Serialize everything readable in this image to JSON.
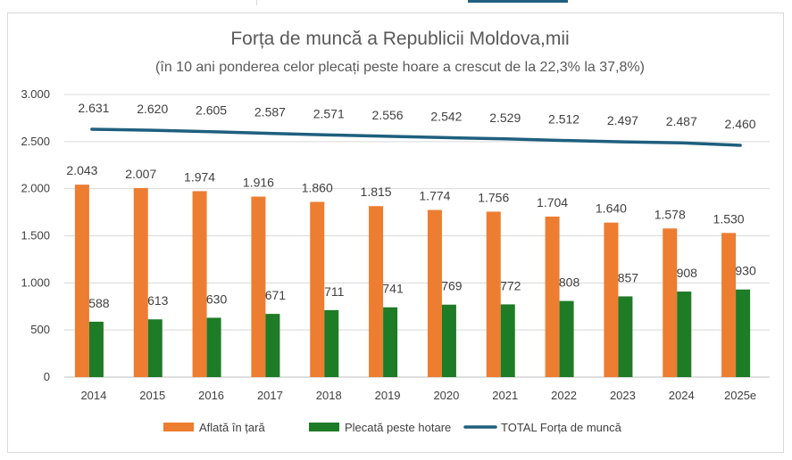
{
  "chart_data": {
    "type": "bar",
    "title": "Forța de muncă a Republicii Moldova,mii",
    "subtitle": "(în 10 ani ponderea celor plecați peste hoare a crescut de la 22,3% la 37,8%)",
    "categories": [
      "2014",
      "2015",
      "2016",
      "2017",
      "2018",
      "2019",
      "2020",
      "2021",
      "2022",
      "2023",
      "2024",
      "2025e"
    ],
    "ylim": [
      0,
      3000
    ],
    "yticks": [
      0,
      500,
      1000,
      1500,
      2000,
      2500,
      3000
    ],
    "ytick_labels": [
      "0",
      "500",
      "1.000",
      "1.500",
      "2.000",
      "2.500",
      "3.000"
    ],
    "grid": true,
    "legend_position": "bottom",
    "series": [
      {
        "name": "Aflată în țară",
        "kind": "bar",
        "color": "#ed7d31",
        "values": [
          2043,
          2007,
          1974,
          1916,
          1860,
          1815,
          1774,
          1756,
          1704,
          1640,
          1578,
          1530
        ],
        "labels": [
          "2.043",
          "2.007",
          "1.974",
          "1.916",
          "1.860",
          "1.815",
          "1.774",
          "1.756",
          "1.704",
          "1.640",
          "1.578",
          "1.530"
        ]
      },
      {
        "name": "Plecată peste hotare",
        "kind": "bar",
        "color": "#1e7b26",
        "values": [
          588,
          613,
          630,
          671,
          711,
          741,
          769,
          772,
          808,
          857,
          908,
          930
        ],
        "labels": [
          "588",
          "613",
          "630",
          "671",
          "711",
          "741",
          "769",
          "772",
          "808",
          "857",
          "908",
          "930"
        ]
      },
      {
        "name": "TOTAL Forța de muncă",
        "kind": "line",
        "color": "#1e5f7e",
        "values": [
          2631,
          2620,
          2605,
          2587,
          2571,
          2556,
          2542,
          2529,
          2512,
          2497,
          2487,
          2460
        ],
        "labels": [
          "2.631",
          "2.620",
          "2.605",
          "2.587",
          "2.571",
          "2.556",
          "2.542",
          "2.529",
          "2.512",
          "2.497",
          "2.487",
          "2.460"
        ]
      }
    ]
  }
}
